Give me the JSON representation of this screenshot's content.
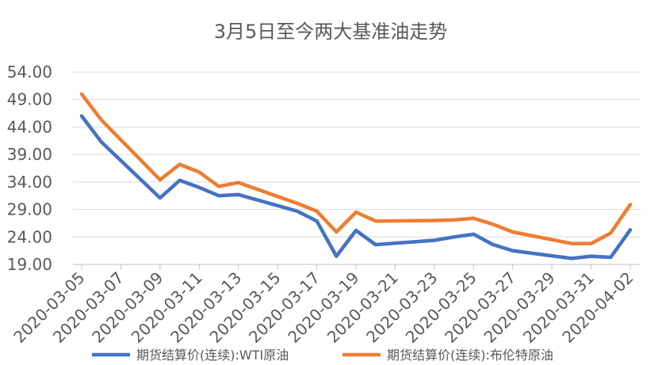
{
  "chart_data": {
    "type": "line",
    "title": "3月5日至今两大基准油走势",
    "xlabel": "",
    "ylabel": "",
    "ylim": [
      19,
      54
    ],
    "y_ticks": [
      "19.00",
      "24.00",
      "29.00",
      "34.00",
      "39.00",
      "44.00",
      "49.00",
      "54.00"
    ],
    "x_ticks": [
      "2020-03-05",
      "2020-03-07",
      "2020-03-09",
      "2020-03-11",
      "2020-03-13",
      "2020-03-15",
      "2020-03-17",
      "2020-03-19",
      "2020-03-21",
      "2020-03-23",
      "2020-03-25",
      "2020-03-27",
      "2020-03-29",
      "2020-03-31",
      "2020-04-02"
    ],
    "xlim": [
      "2020-03-05",
      "2020-04-02"
    ],
    "grid": "horizontal",
    "legend_position": "bottom",
    "series": [
      {
        "name": "期货结算价(连续):WTI原油",
        "color": "#4472C4",
        "points": [
          [
            "2020-03-05",
            46.0
          ],
          [
            "2020-03-06",
            41.3
          ],
          [
            "2020-03-09",
            31.1
          ],
          [
            "2020-03-10",
            34.3
          ],
          [
            "2020-03-11",
            33.0
          ],
          [
            "2020-03-12",
            31.5
          ],
          [
            "2020-03-13",
            31.7
          ],
          [
            "2020-03-16",
            28.7
          ],
          [
            "2020-03-17",
            26.9
          ],
          [
            "2020-03-18",
            20.5
          ],
          [
            "2020-03-19",
            25.2
          ],
          [
            "2020-03-20",
            22.6
          ],
          [
            "2020-03-23",
            23.4
          ],
          [
            "2020-03-24",
            24.0
          ],
          [
            "2020-03-25",
            24.5
          ],
          [
            "2020-03-26",
            22.6
          ],
          [
            "2020-03-27",
            21.5
          ],
          [
            "2020-03-30",
            20.1
          ],
          [
            "2020-03-31",
            20.5
          ],
          [
            "2020-04-01",
            20.3
          ],
          [
            "2020-04-02",
            25.3
          ]
        ]
      },
      {
        "name": "期货结算价(连续):布伦特原油",
        "color": "#ED7D31",
        "points": [
          [
            "2020-03-05",
            50.0
          ],
          [
            "2020-03-06",
            45.3
          ],
          [
            "2020-03-09",
            34.4
          ],
          [
            "2020-03-10",
            37.2
          ],
          [
            "2020-03-11",
            35.8
          ],
          [
            "2020-03-12",
            33.2
          ],
          [
            "2020-03-13",
            33.9
          ],
          [
            "2020-03-16",
            30.1
          ],
          [
            "2020-03-17",
            28.7
          ],
          [
            "2020-03-18",
            24.9
          ],
          [
            "2020-03-19",
            28.5
          ],
          [
            "2020-03-20",
            26.9
          ],
          [
            "2020-03-23",
            27.0
          ],
          [
            "2020-03-24",
            27.1
          ],
          [
            "2020-03-25",
            27.4
          ],
          [
            "2020-03-26",
            26.3
          ],
          [
            "2020-03-27",
            24.9
          ],
          [
            "2020-03-30",
            22.8
          ],
          [
            "2020-03-31",
            22.8
          ],
          [
            "2020-04-01",
            24.7
          ],
          [
            "2020-04-02",
            29.9
          ]
        ]
      }
    ]
  }
}
